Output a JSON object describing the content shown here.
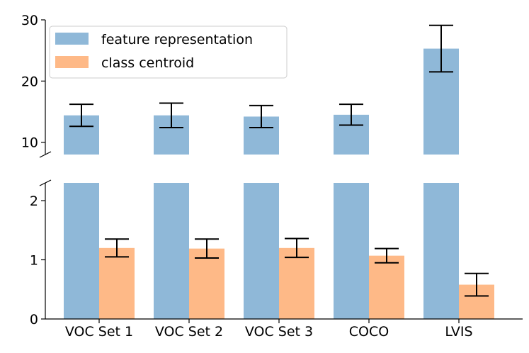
{
  "chart_data": {
    "type": "bar",
    "broken_axis": true,
    "categories": [
      "VOC Set 1",
      "VOC Set 2",
      "VOC Set 3",
      "COCO",
      "LVIS"
    ],
    "series": [
      {
        "name": "feature representation",
        "color": "#8fb8d8",
        "values": [
          14.4,
          14.4,
          14.2,
          14.5,
          25.3
        ],
        "errors": [
          1.8,
          2.0,
          1.8,
          1.7,
          3.8
        ]
      },
      {
        "name": "class centroid",
        "color": "#feb987",
        "values": [
          1.2,
          1.19,
          1.2,
          1.07,
          0.58
        ],
        "errors": [
          0.15,
          0.16,
          0.16,
          0.12,
          0.19
        ]
      }
    ],
    "upper_ylim": [
      8,
      30
    ],
    "upper_yticks": [
      10,
      20,
      30
    ],
    "lower_ylim": [
      0,
      2.3
    ],
    "lower_yticks": [
      0,
      1,
      2
    ],
    "legend": {
      "position": "top-left"
    },
    "grid": false,
    "title": "",
    "xlabel": "",
    "ylabel": ""
  }
}
